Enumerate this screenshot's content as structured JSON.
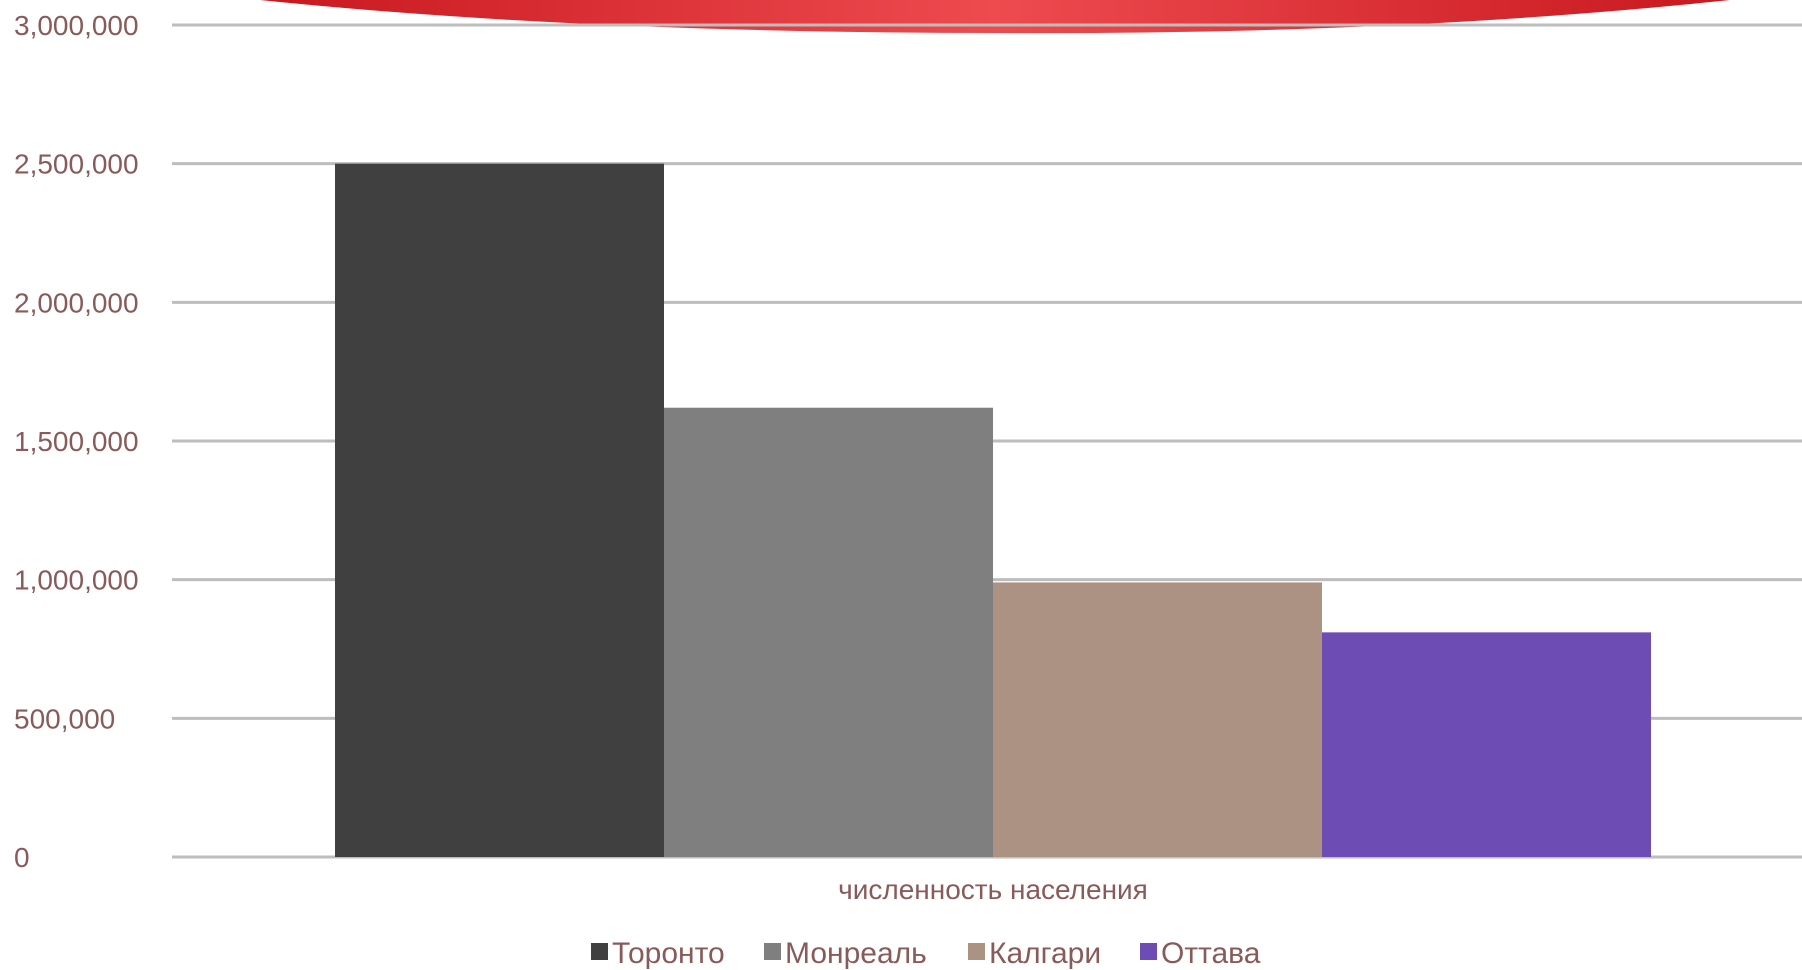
{
  "chart_data": {
    "type": "bar",
    "categories": [
      "численность населения"
    ],
    "series": [
      {
        "name": "Торонто",
        "values": [
          2500000
        ],
        "color": "#404040"
      },
      {
        "name": "Монреаль",
        "values": [
          1620000
        ],
        "color": "#7f7f7f"
      },
      {
        "name": "Калгари",
        "values": [
          990000
        ],
        "color": "#ab9282"
      },
      {
        "name": "Оттава",
        "values": [
          810000
        ],
        "color": "#6d4db3"
      }
    ],
    "y_ticks": [
      "0",
      "500,000",
      "1,000,000",
      "1,500,000",
      "2,000,000",
      "2,500,000",
      "3,000,000"
    ],
    "ylim": [
      0,
      3000000
    ],
    "grid": true,
    "legend_position": "bottom",
    "accent_banner_color": "#e0353b"
  }
}
